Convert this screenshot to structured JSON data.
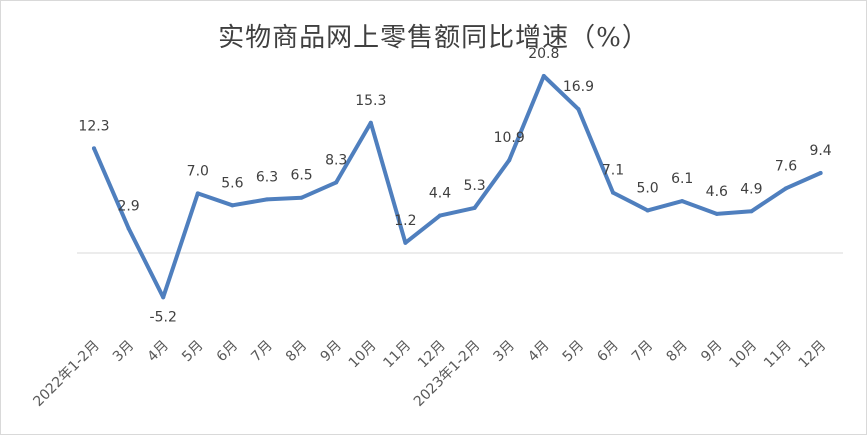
{
  "chart_data": {
    "type": "line",
    "title": "实物商品网上零售额同比增速（%）",
    "categories": [
      "2022年1-2月",
      "3月",
      "4月",
      "5月",
      "6月",
      "7月",
      "8月",
      "9月",
      "10月",
      "11月",
      "12月",
      "2023年1-2月",
      "3月",
      "4月",
      "5月",
      "6月",
      "7月",
      "8月",
      "9月",
      "10月",
      "11月",
      "12月"
    ],
    "series": [
      {
        "values": [
          12.3,
          2.9,
          -5.2,
          7.0,
          5.6,
          6.3,
          6.5,
          8.3,
          15.3,
          1.2,
          4.4,
          5.3,
          10.9,
          20.8,
          16.9,
          7.1,
          5.0,
          6.1,
          4.6,
          4.9,
          7.6,
          9.4
        ],
        "labels": [
          "12.3",
          "2.9",
          "-5.2",
          "7.0",
          "5.6",
          "6.3",
          "6.5",
          "8.3",
          "15.3",
          "1.2",
          "4.4",
          "5.3",
          "10.9",
          "20.8",
          "16.9",
          "7.1",
          "5.0",
          "6.1",
          "4.6",
          "4.9",
          "7.6",
          "9.4"
        ],
        "color": "#4f7fbe"
      }
    ],
    "ylim": [
      -6,
      22
    ],
    "grid": false,
    "legend": "none"
  }
}
